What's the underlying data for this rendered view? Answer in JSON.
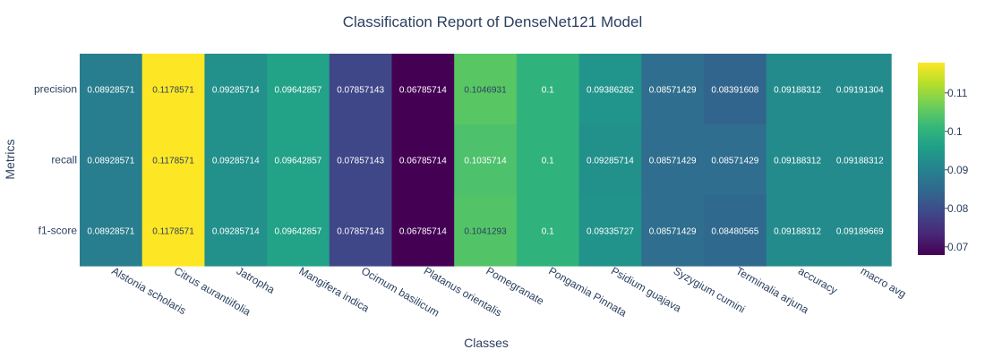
{
  "chart_data": {
    "type": "heatmap",
    "title": "Classification Report of DenseNet121 Model",
    "xlabel": "Classes",
    "ylabel": "Metrics",
    "x": [
      "Alstonia scholaris",
      "Citrus aurantiifolia",
      "Jatropha",
      "Mangifera indica",
      "Ocimum basilicum",
      "Platanus orientalis",
      "Pomegranate",
      "Pongamia Pinnata",
      "Psidium guajava",
      "Syzygium cumini",
      "Terminalia arjuna",
      "accuracy",
      "macro avg"
    ],
    "y": [
      "precision",
      "recall",
      "f1-score"
    ],
    "z": [
      [
        0.08928571,
        0.1178571,
        0.09285714,
        0.09642857,
        0.07857143,
        0.06785714,
        0.1046931,
        0.1,
        0.09386282,
        0.08571429,
        0.08391608,
        0.09188312,
        0.09191304
      ],
      [
        0.08928571,
        0.1178571,
        0.09285714,
        0.09642857,
        0.07857143,
        0.06785714,
        0.1035714,
        0.1,
        0.09285714,
        0.08571429,
        0.08571429,
        0.09188312,
        0.09188312
      ],
      [
        0.08928571,
        0.1178571,
        0.09285714,
        0.09642857,
        0.07857143,
        0.06785714,
        0.1041293,
        0.1,
        0.09335727,
        0.08571429,
        0.08480565,
        0.09188312,
        0.09189669
      ]
    ],
    "text": [
      [
        "0.08928571",
        "0.1178571",
        "0.09285714",
        "0.09642857",
        "0.07857143",
        "0.06785714",
        "0.1046931",
        "0.1",
        "0.09386282",
        "0.08571429",
        "0.08391608",
        "0.09188312",
        "0.09191304"
      ],
      [
        "0.08928571",
        "0.1178571",
        "0.09285714",
        "0.09642857",
        "0.07857143",
        "0.06785714",
        "0.1035714",
        "0.1",
        "0.09285714",
        "0.08571429",
        "0.08571429",
        "0.09188312",
        "0.09188312"
      ],
      [
        "0.08928571",
        "0.1178571",
        "0.09285714",
        "0.09642857",
        "0.07857143",
        "0.06785714",
        "0.1041293",
        "0.1",
        "0.09335727",
        "0.08571429",
        "0.08480565",
        "0.09188312",
        "0.09189669"
      ]
    ],
    "colorscale": "Viridis",
    "zmin": 0.06785714,
    "zmax": 0.1178571,
    "colorbar_ticks": [
      "0.07",
      "0.08",
      "0.09",
      "0.1",
      "0.11"
    ],
    "colorbar_tick_values": [
      0.07,
      0.08,
      0.09,
      0.1,
      0.11
    ],
    "x_tick_angle": 30,
    "grid": false,
    "legend": "colorbar-right"
  }
}
